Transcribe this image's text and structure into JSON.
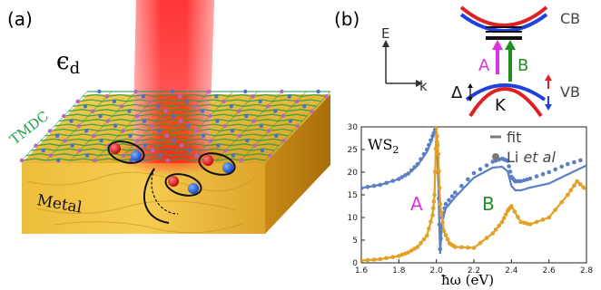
{
  "panel_a": {
    "label": "(a)",
    "epsilon_symbol": "ϵ",
    "epsilon_subscript": "d",
    "layer_label": "TMDC",
    "substrate_label": "Metal",
    "colors": {
      "laser": "#ff1a1a",
      "gold": "#e8b430",
      "tmdc_green": "#1e9e4a",
      "tmdc_blue": "#4a6fd0"
    }
  },
  "panel_b": {
    "label": "(b)",
    "band_diagram": {
      "energy_axis": "E",
      "momentum_axis": "k",
      "conduction_band": "CB",
      "valence_band": "VB",
      "valley": "K",
      "splitting": "Δ",
      "transition_a": "A",
      "transition_b": "B",
      "colors": {
        "a": "#e030e0",
        "b": "#1f8f1f",
        "spin_up": "#e02020",
        "spin_down": "#2040e0"
      }
    },
    "plot_title_main": "WS",
    "plot_title_sub": "2",
    "legend_fit": "fit",
    "legend_data_prefix": "Li ",
    "legend_data_italic": "et al",
    "peak_label_a": "A",
    "peak_label_b": "B"
  },
  "chart_data": {
    "type": "line",
    "title": "WS2",
    "xlabel": "ħω (eV)",
    "ylabel": "",
    "xlim": [
      1.6,
      2.8
    ],
    "ylim": [
      0,
      30
    ],
    "x_ticks": [
      "1.6",
      "1.8",
      "2.0",
      "2.2",
      "2.4",
      "2.6",
      "2.8"
    ],
    "y_ticks": [
      "0",
      "5",
      "10",
      "15",
      "20",
      "25",
      "30"
    ],
    "legend": [
      "fit",
      "Li et al"
    ],
    "colors": {
      "blue": "#5b7fc4",
      "orange": "#e3a024"
    },
    "series": [
      {
        "color": "blue",
        "style": "line",
        "x": [
          1.6,
          1.7,
          1.8,
          1.85,
          1.9,
          1.95,
          1.98,
          2.0,
          2.01,
          2.02,
          2.03,
          2.05,
          2.1,
          2.2,
          2.3,
          2.35,
          2.38,
          2.4,
          2.42,
          2.45,
          2.5,
          2.6,
          2.7,
          2.8
        ],
        "y": [
          16.5,
          17.2,
          18.5,
          19.6,
          21.5,
          24.5,
          27.5,
          30,
          18,
          2,
          9,
          12,
          14.5,
          18.8,
          21,
          21.2,
          20.2,
          17,
          16,
          16,
          16.6,
          17.5,
          19.5,
          21.5
        ]
      },
      {
        "color": "blue",
        "style": "points",
        "x": [
          1.6,
          1.7,
          1.8,
          1.85,
          1.9,
          1.95,
          1.98,
          2.0,
          2.01,
          2.02,
          2.03,
          2.05,
          2.1,
          2.2,
          2.3,
          2.35,
          2.38,
          2.4,
          2.42,
          2.45,
          2.5,
          2.6,
          2.7,
          2.8
        ],
        "y": [
          16.5,
          17.2,
          18.5,
          19.7,
          21.8,
          25,
          28,
          30,
          20,
          3,
          10,
          13,
          15.5,
          19.8,
          22.3,
          23,
          22.5,
          19,
          18,
          18,
          18.6,
          20,
          21.8,
          23
        ]
      },
      {
        "color": "orange",
        "style": "line",
        "x": [
          1.6,
          1.7,
          1.8,
          1.85,
          1.9,
          1.95,
          1.98,
          1.99,
          2.0,
          2.01,
          2.02,
          2.04,
          2.07,
          2.1,
          2.2,
          2.3,
          2.35,
          2.38,
          2.4,
          2.45,
          2.5,
          2.6,
          2.7,
          2.75,
          2.8
        ],
        "y": [
          0.5,
          0.8,
          1.5,
          2.3,
          3.5,
          6,
          10.5,
          15,
          30,
          24,
          13,
          7,
          4.3,
          3.5,
          3.3,
          6.5,
          9,
          11.5,
          12.5,
          9,
          8.5,
          10,
          15,
          18,
          16
        ]
      },
      {
        "color": "orange",
        "style": "points",
        "x": [
          1.6,
          1.7,
          1.8,
          1.85,
          1.9,
          1.95,
          1.98,
          1.99,
          2.0,
          2.01,
          2.02,
          2.04,
          2.07,
          2.1,
          2.2,
          2.3,
          2.35,
          2.38,
          2.4,
          2.45,
          2.5,
          2.6,
          2.7,
          2.75,
          2.8
        ],
        "y": [
          0.5,
          0.8,
          1.5,
          2.3,
          3.5,
          6,
          10.5,
          15,
          30,
          24,
          13,
          7,
          4.3,
          3.5,
          3.3,
          6.5,
          9,
          11.5,
          12.5,
          9,
          8.5,
          10,
          15,
          18,
          16
        ]
      }
    ]
  }
}
